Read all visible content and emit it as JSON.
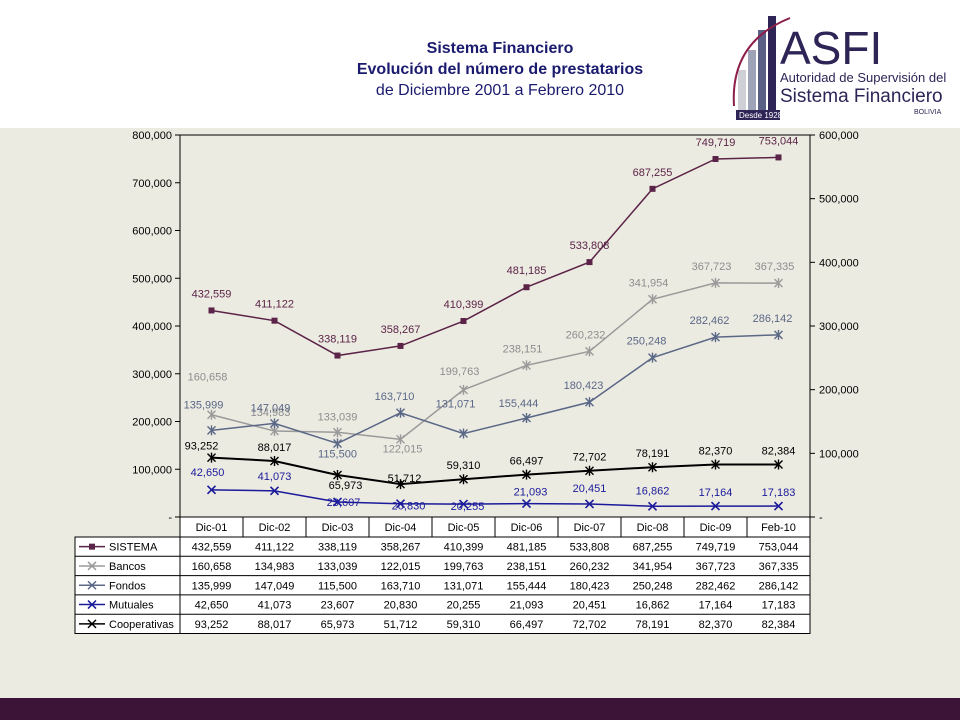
{
  "header": {
    "title": "Sistema Financiero",
    "subtitle": "Evolución del número de prestatarios",
    "period": "de Diciembre 2001 a Febrero 2010"
  },
  "logo": {
    "name": "ASFI",
    "line1": "Autoridad de Supervisión del",
    "line2": "Sistema Financiero",
    "since": "Desde 1928",
    "country": "BOLIVIA"
  },
  "colors": {
    "SISTEMA": "#5b2347",
    "Bancos": "#9a9a9a",
    "Fondos": "#5a6786",
    "Mutuales": "#1a1a9a",
    "Cooperativas": "#000000",
    "footer": "#3c1437"
  },
  "chart_data": {
    "type": "line",
    "categories": [
      "Dic-01",
      "Dic-02",
      "Dic-03",
      "Dic-04",
      "Dic-05",
      "Dic-06",
      "Dic-07",
      "Dic-08",
      "Dic-09",
      "Feb-10"
    ],
    "left_axis": {
      "ticks": [
        "-",
        "100,000",
        "200,000",
        "300,000",
        "400,000",
        "500,000",
        "600,000",
        "700,000",
        "800,000"
      ],
      "range": [
        0,
        800000
      ]
    },
    "right_axis": {
      "ticks": [
        "-",
        "100,000",
        "200,000",
        "300,000",
        "400,000",
        "500,000",
        "600,000"
      ],
      "range": [
        0,
        600000
      ]
    },
    "legend_placement": "data-table",
    "series": [
      {
        "name": "SISTEMA",
        "axis": "left",
        "marker": "square",
        "values": [
          432559,
          411122,
          338119,
          358267,
          410399,
          481185,
          533808,
          687255,
          749719,
          753044
        ],
        "labels": [
          "432,559",
          "411,122",
          "338,119",
          "358,267",
          "410,399",
          "481,185",
          "533,808",
          "687,255",
          "749,719",
          "753,044"
        ]
      },
      {
        "name": "Bancos",
        "axis": "right",
        "marker": "star",
        "values": [
          160658,
          134983,
          133039,
          122015,
          199763,
          238151,
          260232,
          341954,
          367723,
          367335
        ],
        "labels": [
          "160,658",
          "134,983",
          "133,039",
          "122,015",
          "199,763",
          "238,151",
          "260,232",
          "341,954",
          "367,723",
          "367,335"
        ]
      },
      {
        "name": "Fondos",
        "axis": "right",
        "marker": "star",
        "values": [
          135999,
          147049,
          115500,
          163710,
          131071,
          155444,
          180423,
          250248,
          282462,
          286142
        ],
        "labels": [
          "135,999",
          "147,049",
          "115,500",
          "163,710",
          "131,071",
          "155,444",
          "180,423",
          "250,248",
          "282,462",
          "286,142"
        ]
      },
      {
        "name": "Mutuales",
        "axis": "right",
        "marker": "x",
        "values": [
          42650,
          41073,
          23607,
          20830,
          20255,
          21093,
          20451,
          16862,
          17164,
          17183
        ],
        "labels": [
          "42,650",
          "41,073",
          "23,607",
          "20,830",
          "20,255",
          "21,093",
          "20,451",
          "16,862",
          "17,164",
          "17,183"
        ]
      },
      {
        "name": "Cooperativas",
        "axis": "right",
        "marker": "star",
        "values": [
          93252,
          88017,
          65973,
          51712,
          59310,
          66497,
          72702,
          78191,
          82370,
          82384
        ],
        "labels": [
          "93,252",
          "88,017",
          "65,973",
          "51,712",
          "59,310",
          "66,497",
          "72,702",
          "78,191",
          "82,370",
          "82,384"
        ]
      }
    ]
  }
}
